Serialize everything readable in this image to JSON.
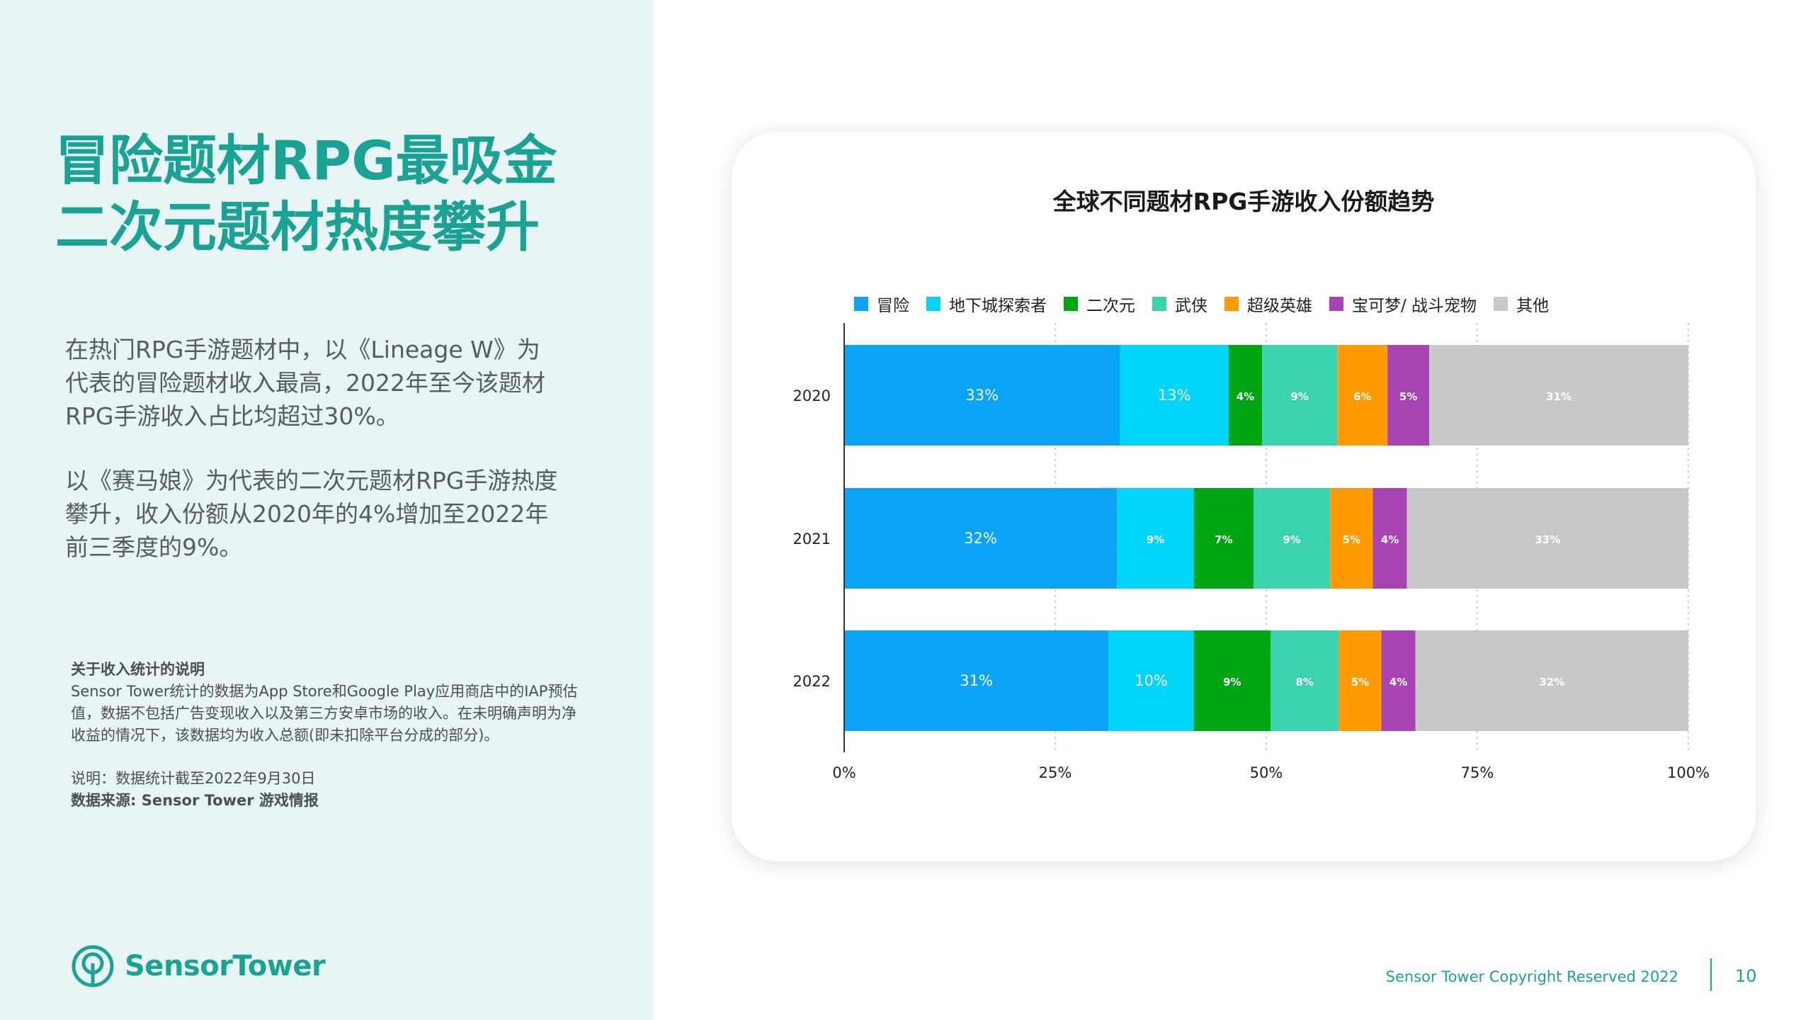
{
  "left": {
    "headline_line1": "冒险题材RPG最吸金",
    "headline_line2": "二次元题材热度攀升",
    "para1": "在热门RPG手游题材中，以《Lineage W》为代表的冒险题材收入最高，2022年至今该题材RPG手游收入占比均超过30%。",
    "para2": "以《赛马娘》为代表的二次元题材RPG手游热度攀升，收入份额从2020年的4%增加至2022年前三季度的9%。",
    "note_title": "关于收入统计的说明",
    "note_body": "Sensor Tower统计的数据为App Store和Google Play应用商店中的IAP预估值，数据不包括广告变现收入以及第三方安卓市场的收入。在未明确声明为净收益的情况下，该数据均为收入总额(即未扣除平台分成的部分)。",
    "note_date": "说明：数据统计截至2022年9月30日",
    "note_source": "数据来源: Sensor Tower 游戏情报"
  },
  "brand": {
    "name": "SensorTower"
  },
  "footer": {
    "copyright": "Sensor Tower Copyright Reserved 2022",
    "page": "10"
  },
  "watermark": "SensorTower",
  "chart_data": {
    "type": "bar",
    "orientation": "horizontal",
    "stacked": true,
    "title": "全球不同题材RPG手游收入份额趋势",
    "categories": [
      "2020",
      "2021",
      "2022"
    ],
    "series": [
      {
        "name": "冒险",
        "color": "#0aa3f5",
        "values": [
          33,
          32,
          31
        ],
        "labels": [
          "33%",
          "32%",
          "31%"
        ]
      },
      {
        "name": "地下城探索者",
        "color": "#00d4f7",
        "values": [
          13,
          9,
          10
        ],
        "labels": [
          "13%",
          "9%",
          "10%"
        ]
      },
      {
        "name": "二次元",
        "color": "#00a513",
        "values": [
          4,
          7,
          9
        ],
        "labels": [
          "4%",
          "7%",
          "9%"
        ]
      },
      {
        "name": "武侠",
        "color": "#3bd3ad",
        "values": [
          9,
          9,
          8
        ],
        "labels": [
          "9%",
          "9%",
          "8%"
        ]
      },
      {
        "name": "超级英雄",
        "color": "#ff9a00",
        "values": [
          6,
          5,
          5
        ],
        "labels": [
          "6%",
          "5%",
          "5%"
        ]
      },
      {
        "name": "宝可梦/ 战斗宠物",
        "color": "#a843b3",
        "values": [
          5,
          4,
          4
        ],
        "labels": [
          "5%",
          "4%",
          "4%"
        ]
      },
      {
        "name": "其他",
        "color": "#c8c8c8",
        "values": [
          31,
          33,
          32
        ],
        "labels": [
          "31%",
          "33%",
          "32%"
        ]
      }
    ],
    "x_ticks": [
      "0%",
      "25%",
      "50%",
      "75%",
      "100%"
    ],
    "xlim": [
      0,
      100
    ],
    "grid": "vertical dotted",
    "legend_position": "top"
  }
}
